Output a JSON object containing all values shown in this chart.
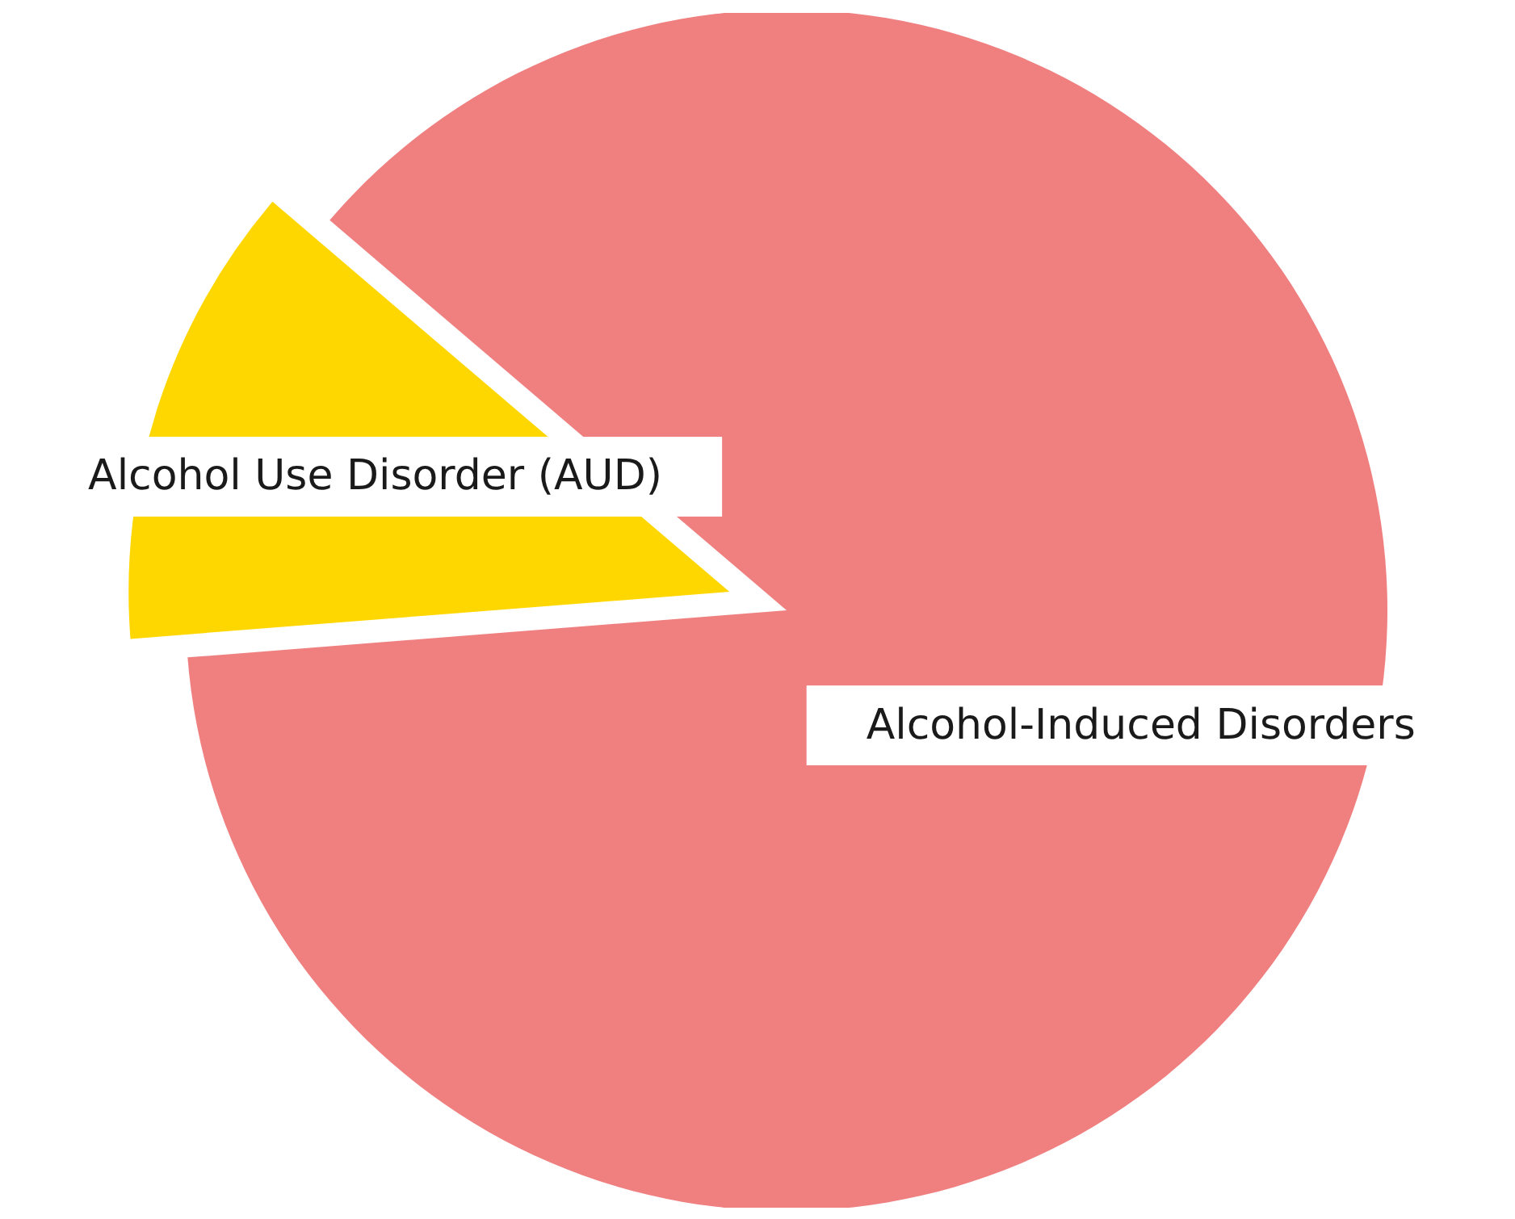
{
  "chart_data": {
    "type": "pie",
    "categories": [
      "Alcohol Use Disorder (AUD)",
      "Alcohol-Induced Disorders"
    ],
    "values": [
      12.5,
      87.5
    ],
    "colors": [
      "#ffd700",
      "#f08080"
    ]
  }
}
